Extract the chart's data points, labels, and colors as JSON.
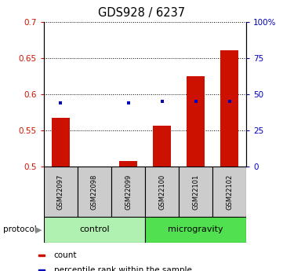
{
  "title": "GDS928 / 6237",
  "samples": [
    "GSM22097",
    "GSM22098",
    "GSM22099",
    "GSM22100",
    "GSM22101",
    "GSM22102"
  ],
  "bar_tops": [
    0.567,
    0.5,
    0.508,
    0.556,
    0.625,
    0.661
  ],
  "bar_bottoms": [
    0.5,
    0.5,
    0.5,
    0.5,
    0.5,
    0.5
  ],
  "percentile_ranks": [
    44,
    0,
    44,
    45,
    45,
    45
  ],
  "ylim_left": [
    0.5,
    0.7
  ],
  "ylim_right": [
    0,
    100
  ],
  "yticks_left": [
    0.5,
    0.55,
    0.6,
    0.65,
    0.7
  ],
  "yticks_right": [
    0,
    25,
    50,
    75,
    100
  ],
  "ytick_labels_left": [
    "0.5",
    "0.55",
    "0.6",
    "0.65",
    "0.7"
  ],
  "ytick_labels_right": [
    "0",
    "25",
    "50",
    "75",
    "100%"
  ],
  "groups": [
    {
      "label": "control",
      "samples": [
        0,
        1,
        2
      ],
      "color": "#b0f0b0"
    },
    {
      "label": "microgravity",
      "samples": [
        3,
        4,
        5
      ],
      "color": "#50e050"
    }
  ],
  "bar_color": "#cc1100",
  "percentile_color": "#0000bb",
  "protocol_label": "protocol",
  "legend_items": [
    {
      "label": "count",
      "color": "#cc1100"
    },
    {
      "label": "percentile rank within the sample",
      "color": "#0000bb"
    }
  ],
  "fig_width": 3.61,
  "fig_height": 3.45,
  "dpi": 100
}
